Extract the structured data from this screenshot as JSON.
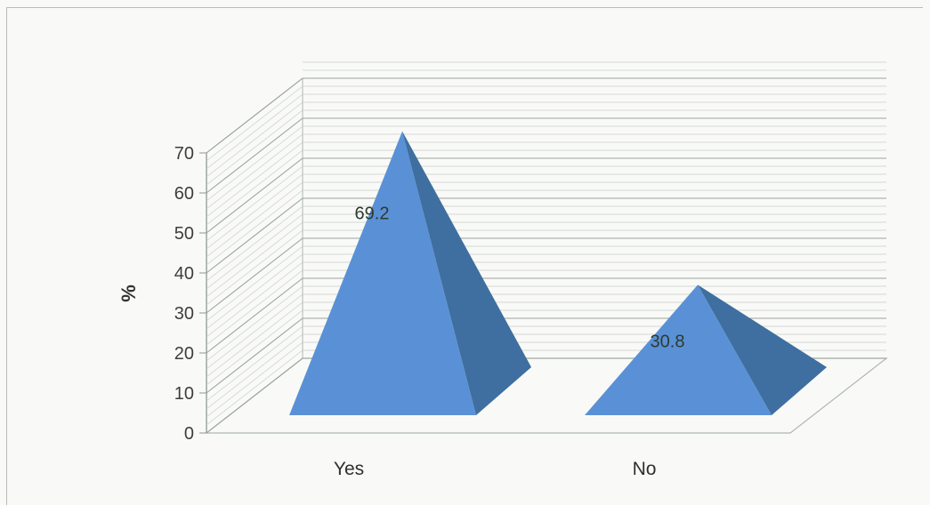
{
  "chart_data": {
    "type": "bar",
    "style": "3d-pyramid",
    "categories": [
      "Yes",
      "No"
    ],
    "values": [
      69.2,
      30.8
    ],
    "data_labels": [
      "69.2",
      "30.8"
    ],
    "title": "",
    "xlabel": "",
    "ylabel": "%",
    "ylim": [
      0,
      70
    ],
    "yticks": [
      "0",
      "10",
      "20",
      "30",
      "40",
      "50",
      "60",
      "70"
    ],
    "grid": true,
    "legend": "none",
    "colors": {
      "front_face": "#5a91d6",
      "side_face": "#3e6fa0",
      "grid": "#aeb7ae"
    }
  }
}
